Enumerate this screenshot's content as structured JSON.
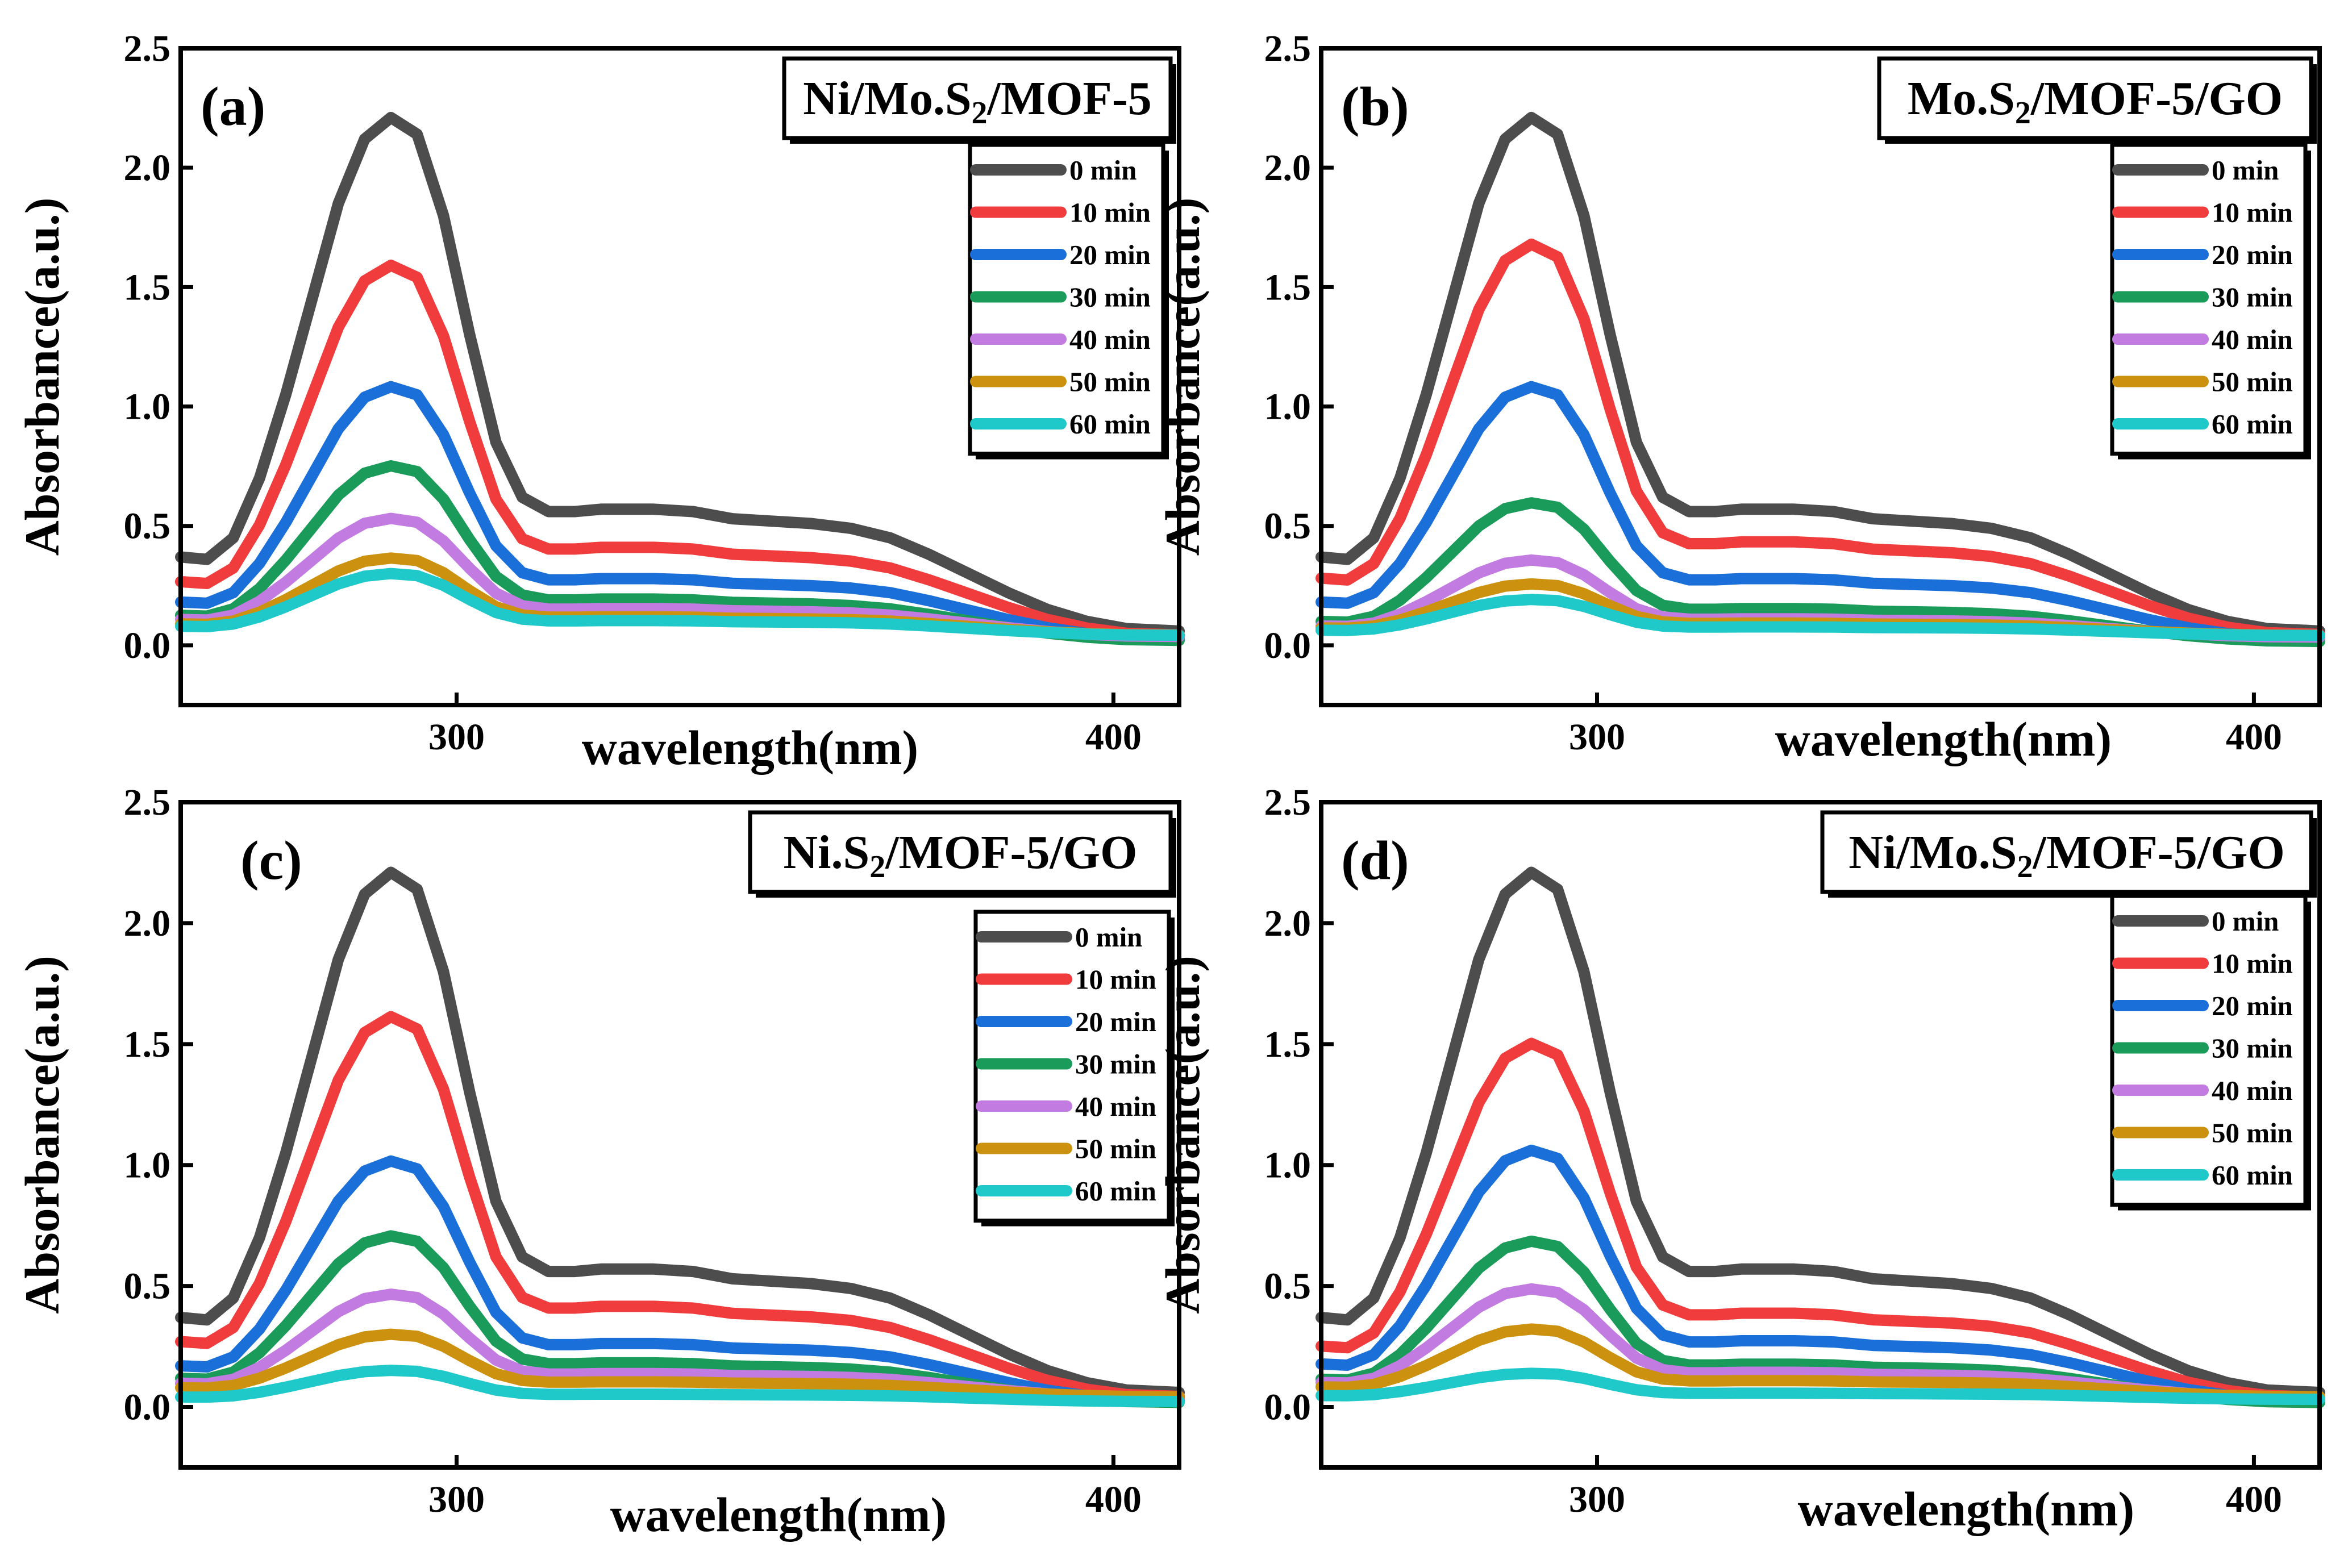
{
  "figure": {
    "series_colors": {
      "0 min": "#4d4d4d",
      "10 min": "#f03c3c",
      "20 min": "#1a6fd8",
      "30 min": "#1b9b5a",
      "40 min": "#c27be0",
      "50 min": "#cc920f",
      "60 min": "#1fc9c9"
    }
  },
  "chart_data": [
    {
      "id": "a",
      "type": "line",
      "panel_label": "(a)",
      "title_main": "Ni/Mo.S",
      "title_sub": "2",
      "title_rest": "/MOF-5",
      "xlabel": "wavelength(nm)",
      "ylabel": "Absorbance(a.u.)",
      "xlim": [
        258,
        410
      ],
      "ylim": [
        -0.25,
        2.5
      ],
      "xticks": [
        300,
        400
      ],
      "xtick_labels": [
        "300",
        "400"
      ],
      "yticks": [
        0.0,
        0.5,
        1.0,
        1.5,
        2.0,
        2.5
      ],
      "ytick_labels": [
        "0.0",
        "0.5",
        "1.0",
        "1.5",
        "2.0",
        "2.5"
      ],
      "legend_position": "top-right",
      "series": [
        {
          "name": "0 min",
          "scale": 1.0,
          "base": 0.0
        },
        {
          "name": "10 min",
          "scale": 0.72,
          "base": 0.0
        },
        {
          "name": "20 min",
          "scale": 0.49,
          "base": 0.0
        },
        {
          "name": "30 min",
          "scale": 0.34,
          "base": 0.0
        },
        {
          "name": "40 min",
          "scale": 0.23,
          "base": 0.03
        },
        {
          "name": "50 min",
          "scale": 0.15,
          "base": 0.04
        },
        {
          "name": "60 min",
          "scale": 0.12,
          "base": 0.04
        }
      ]
    },
    {
      "id": "b",
      "type": "line",
      "panel_label": "(b)",
      "title_main": "Mo.S",
      "title_sub": "2",
      "title_rest": "/MOF-5/GO",
      "xlabel": "wavelength(nm)",
      "ylabel": "Absorbance(a.u.)",
      "xlim": [
        258,
        410
      ],
      "ylim": [
        -0.25,
        2.5
      ],
      "xticks": [
        300,
        400
      ],
      "xtick_labels": [
        "300",
        "400"
      ],
      "yticks": [
        0.0,
        0.5,
        1.0,
        1.5,
        2.0,
        2.5
      ],
      "ytick_labels": [
        "0.0",
        "0.5",
        "1.0",
        "1.5",
        "2.0",
        "2.5"
      ],
      "legend_position": "top-right",
      "series": [
        {
          "name": "0 min",
          "scale": 1.0,
          "base": 0.0
        },
        {
          "name": "10 min",
          "scale": 0.76,
          "base": 0.0
        },
        {
          "name": "20 min",
          "scale": 0.49,
          "base": 0.0
        },
        {
          "name": "30 min",
          "scale": 0.27,
          "base": 0.0
        },
        {
          "name": "40 min",
          "scale": 0.15,
          "base": 0.03
        },
        {
          "name": "50 min",
          "scale": 0.1,
          "base": 0.04
        },
        {
          "name": "60 min",
          "scale": 0.07,
          "base": 0.04
        }
      ]
    },
    {
      "id": "c",
      "type": "line",
      "panel_label": "(c)",
      "title_main": "Ni.S",
      "title_sub": "2",
      "title_rest": "/MOF-5/GO",
      "xlabel": "wavelength(nm)",
      "ylabel": "Absorbance(a.u.)",
      "xlim": [
        258,
        410
      ],
      "ylim": [
        -0.25,
        2.5
      ],
      "xticks": [
        300,
        400
      ],
      "xtick_labels": [
        "300",
        "400"
      ],
      "yticks": [
        0.0,
        0.5,
        1.0,
        1.5,
        2.0,
        2.5
      ],
      "ytick_labels": [
        "0.0",
        "0.5",
        "1.0",
        "1.5",
        "2.0",
        "2.5"
      ],
      "legend_position": "top-right",
      "series": [
        {
          "name": "0 min",
          "scale": 1.0,
          "base": 0.0
        },
        {
          "name": "10 min",
          "scale": 0.73,
          "base": 0.0
        },
        {
          "name": "20 min",
          "scale": 0.46,
          "base": 0.0
        },
        {
          "name": "30 min",
          "scale": 0.32,
          "base": 0.0
        },
        {
          "name": "40 min",
          "scale": 0.2,
          "base": 0.03
        },
        {
          "name": "50 min",
          "scale": 0.12,
          "base": 0.04
        },
        {
          "name": "60 min",
          "scale": 0.06,
          "base": 0.02
        }
      ]
    },
    {
      "id": "d",
      "type": "line",
      "panel_label": "(d)",
      "title_main": "Ni/Mo.S",
      "title_sub": "2",
      "title_rest": "/MOF-5/GO",
      "xlabel": "wavelength(nm)",
      "ylabel": "Absorbance(a.u.)",
      "xlim": [
        258,
        410
      ],
      "ylim": [
        -0.25,
        2.5
      ],
      "xticks": [
        300,
        400
      ],
      "xtick_labels": [
        "300",
        "400"
      ],
      "yticks": [
        0.0,
        0.5,
        1.0,
        1.5,
        2.0,
        2.5
      ],
      "ytick_labels": [
        "0.0",
        "0.5",
        "1.0",
        "1.5",
        "2.0",
        "2.5"
      ],
      "legend_position": "top-right",
      "series": [
        {
          "name": "0 min",
          "scale": 1.0,
          "base": 0.0
        },
        {
          "name": "10 min",
          "scale": 0.68,
          "base": 0.0
        },
        {
          "name": "20 min",
          "scale": 0.48,
          "base": 0.0
        },
        {
          "name": "30 min",
          "scale": 0.31,
          "base": 0.0
        },
        {
          "name": "40 min",
          "scale": 0.21,
          "base": 0.03
        },
        {
          "name": "50 min",
          "scale": 0.13,
          "base": 0.04
        },
        {
          "name": "60 min",
          "scale": 0.05,
          "base": 0.03
        }
      ]
    }
  ],
  "reference_curve_0min": {
    "x": [
      258,
      262,
      266,
      270,
      274,
      278,
      282,
      286,
      290,
      294,
      298,
      302,
      306,
      310,
      314,
      318,
      322,
      326,
      330,
      336,
      342,
      348,
      354,
      360,
      366,
      372,
      378,
      384,
      390,
      396,
      402,
      410
    ],
    "y": [
      0.37,
      0.36,
      0.45,
      0.7,
      1.05,
      1.45,
      1.85,
      2.12,
      2.21,
      2.14,
      1.8,
      1.3,
      0.85,
      0.62,
      0.56,
      0.56,
      0.57,
      0.57,
      0.57,
      0.56,
      0.53,
      0.52,
      0.51,
      0.49,
      0.45,
      0.38,
      0.3,
      0.22,
      0.15,
      0.1,
      0.07,
      0.06
    ]
  }
}
